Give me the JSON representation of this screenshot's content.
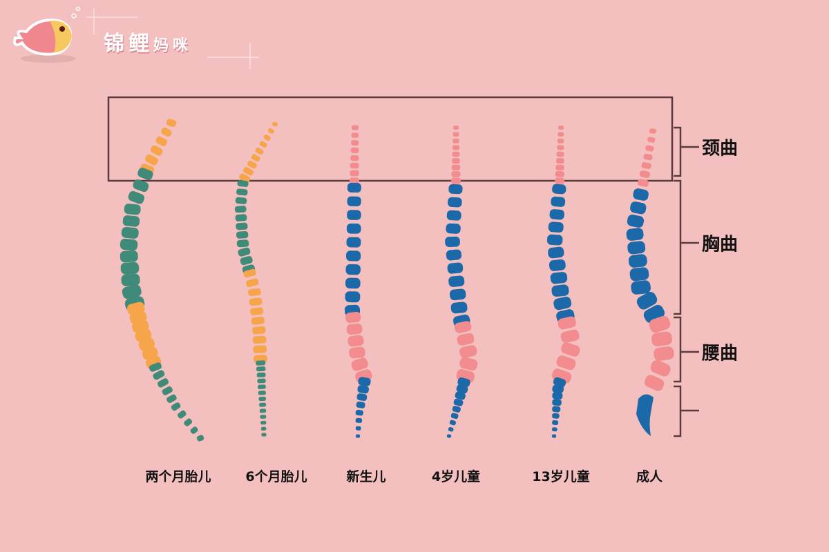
{
  "brand": {
    "title_big": "锦鲤",
    "title_small": "妈咪",
    "logo": "koi-fish-icon"
  },
  "spines": [
    {
      "label": "两个月胎儿"
    },
    {
      "label": "6个月胎儿"
    },
    {
      "label": "新生儿"
    },
    {
      "label": "4岁儿童"
    },
    {
      "label": "13岁儿童"
    },
    {
      "label": "成人"
    }
  ],
  "curves": [
    {
      "label": "颈曲"
    },
    {
      "label": "胸曲"
    },
    {
      "label": "腰曲"
    }
  ],
  "colors": {
    "background": "#f3bfbf",
    "orange": "#f7a54a",
    "green": "#3f8a78",
    "pink": "#f28c8e",
    "blue": "#1b69a8",
    "frame": "#5a3a3a"
  }
}
